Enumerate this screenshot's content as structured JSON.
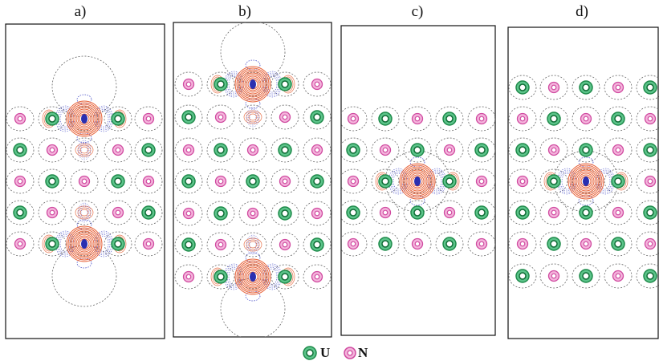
{
  "panels": [
    {
      "label": "a)"
    },
    {
      "label": "b)"
    },
    {
      "label": "c)"
    },
    {
      "label": "d)"
    }
  ],
  "legend": [
    {
      "label": "U"
    },
    {
      "label": "N"
    }
  ]
}
